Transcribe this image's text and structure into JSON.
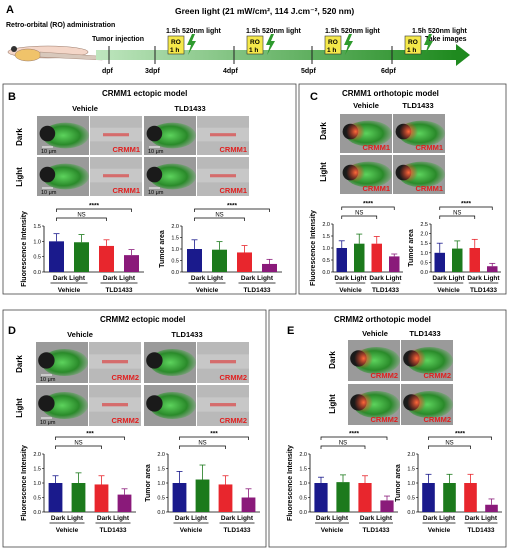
{
  "panel_letters": {
    "A": "A",
    "B": "B",
    "C": "C",
    "D": "D",
    "E": "E"
  },
  "timeline": {
    "green_light": "Green light (21 mW/cm², 114 J.cm⁻², 520 nm)",
    "ro_admin": "Retro-orbital (RO) administration",
    "tumor_injection": "Tumor injection",
    "take_images": "Take images",
    "days": [
      "dpf",
      "3dpf",
      "4dpf",
      "5dpf",
      "6dpf"
    ],
    "light_step": "1.5h 520nm light",
    "ro_box": "RO",
    "hour_box": "1 h"
  },
  "titles": {
    "b": "CRMM1 ectopic model",
    "c": "CRMM1 orthotopic model",
    "d": "CRMM2 ectopic model",
    "e": "CRMM2 orthotopic model"
  },
  "labels": {
    "vehicle": "Vehicle",
    "tld": "TLD1433",
    "dark": "Dark",
    "light": "Light",
    "crmm1": "CRMM1",
    "crmm2": "CRMM2",
    "scale": "10 μm",
    "ylabel_fi": "Fluorescence Intensity",
    "ylabel_ta": "Tumor area",
    "xcat": "Dark Light",
    "ns": "NS",
    "p4": "****",
    "p3": "***"
  },
  "colors": {
    "vehicle_dark": "#1a1a8c",
    "vehicle_light": "#1c7a1c",
    "tld_dark": "#e8262d",
    "tld_light": "#8a1a7a",
    "accent_red": "#e02020",
    "arrow_green": "#2e9a2e",
    "box_yellow": "#f5e84a"
  },
  "chart_data": [
    {
      "id": "B-fi",
      "type": "bar",
      "categories": [
        "Dark",
        "Light",
        "Dark",
        "Light"
      ],
      "groups": [
        "Vehicle",
        "TLD1433"
      ],
      "values": [
        1.0,
        0.97,
        0.85,
        0.55
      ],
      "errors": [
        0.25,
        0.25,
        0.2,
        0.18
      ],
      "ylim": [
        0,
        1.5
      ],
      "yticks": [
        0.0,
        0.5,
        1.0,
        1.5
      ],
      "ylabel": "Fluorescence Intensity"
    },
    {
      "id": "B-ta",
      "type": "bar",
      "categories": [
        "Dark",
        "Light",
        "Dark",
        "Light"
      ],
      "groups": [
        "Vehicle",
        "TLD1433"
      ],
      "values": [
        1.0,
        0.97,
        0.85,
        0.35
      ],
      "errors": [
        0.4,
        0.35,
        0.3,
        0.2
      ],
      "ylim": [
        0,
        2.0
      ],
      "yticks": [
        0.0,
        0.5,
        1.0,
        1.5,
        2.0
      ],
      "ylabel": "Tumor area"
    },
    {
      "id": "C-fi",
      "type": "bar",
      "categories": [
        "Dark",
        "Light",
        "Dark",
        "Light"
      ],
      "groups": [
        "Vehicle",
        "TLD1433"
      ],
      "values": [
        1.0,
        1.18,
        1.18,
        0.65
      ],
      "errors": [
        0.3,
        0.4,
        0.3,
        0.1
      ],
      "ylim": [
        0,
        2.0
      ],
      "yticks": [
        0.0,
        0.5,
        1.0,
        1.5,
        2.0
      ],
      "ylabel": "Fluorescence Intensity"
    },
    {
      "id": "C-ta",
      "type": "bar",
      "categories": [
        "Dark",
        "Light",
        "Dark",
        "Light"
      ],
      "groups": [
        "Vehicle",
        "TLD1433"
      ],
      "values": [
        1.0,
        1.22,
        1.25,
        0.3
      ],
      "errors": [
        0.5,
        0.4,
        0.45,
        0.15
      ],
      "ylim": [
        0,
        2.5
      ],
      "yticks": [
        0.0,
        0.5,
        1.0,
        1.5,
        2.0,
        2.5
      ],
      "ylabel": "Tumor area"
    },
    {
      "id": "D-fi",
      "type": "bar",
      "categories": [
        "Dark",
        "Light",
        "Dark",
        "Light"
      ],
      "groups": [
        "Vehicle",
        "TLD1433"
      ],
      "values": [
        1.0,
        1.0,
        0.95,
        0.6
      ],
      "errors": [
        0.25,
        0.35,
        0.3,
        0.2
      ],
      "ylim": [
        0,
        2.0
      ],
      "yticks": [
        0.0,
        0.5,
        1.0,
        1.5,
        2.0
      ],
      "ylabel": "Fluorescence Intensity"
    },
    {
      "id": "D-ta",
      "type": "bar",
      "categories": [
        "Dark",
        "Light",
        "Dark",
        "Light"
      ],
      "groups": [
        "Vehicle",
        "TLD1433"
      ],
      "values": [
        1.0,
        1.12,
        0.95,
        0.5
      ],
      "errors": [
        0.4,
        0.5,
        0.3,
        0.3
      ],
      "ylim": [
        0,
        2.0
      ],
      "yticks": [
        0.0,
        0.5,
        1.0,
        1.5,
        2.0
      ],
      "ylabel": "Tumor area"
    },
    {
      "id": "E-fi",
      "type": "bar",
      "categories": [
        "Dark",
        "Light",
        "Dark",
        "Light"
      ],
      "groups": [
        "Vehicle",
        "TLD1433"
      ],
      "values": [
        1.0,
        1.03,
        1.0,
        0.4
      ],
      "errors": [
        0.2,
        0.25,
        0.25,
        0.15
      ],
      "ylim": [
        0,
        2.0
      ],
      "yticks": [
        0.0,
        0.5,
        1.0,
        1.5,
        2.0
      ],
      "ylabel": "Fluorescence Intensity"
    },
    {
      "id": "E-ta",
      "type": "bar",
      "categories": [
        "Dark",
        "Light",
        "Dark",
        "Light"
      ],
      "groups": [
        "Vehicle",
        "TLD1433"
      ],
      "values": [
        1.0,
        1.0,
        1.0,
        0.25
      ],
      "errors": [
        0.3,
        0.3,
        0.3,
        0.2
      ],
      "ylim": [
        0,
        2.0
      ],
      "yticks": [
        0.0,
        0.5,
        1.0,
        1.5,
        2.0
      ],
      "ylabel": "Tumor area"
    }
  ]
}
